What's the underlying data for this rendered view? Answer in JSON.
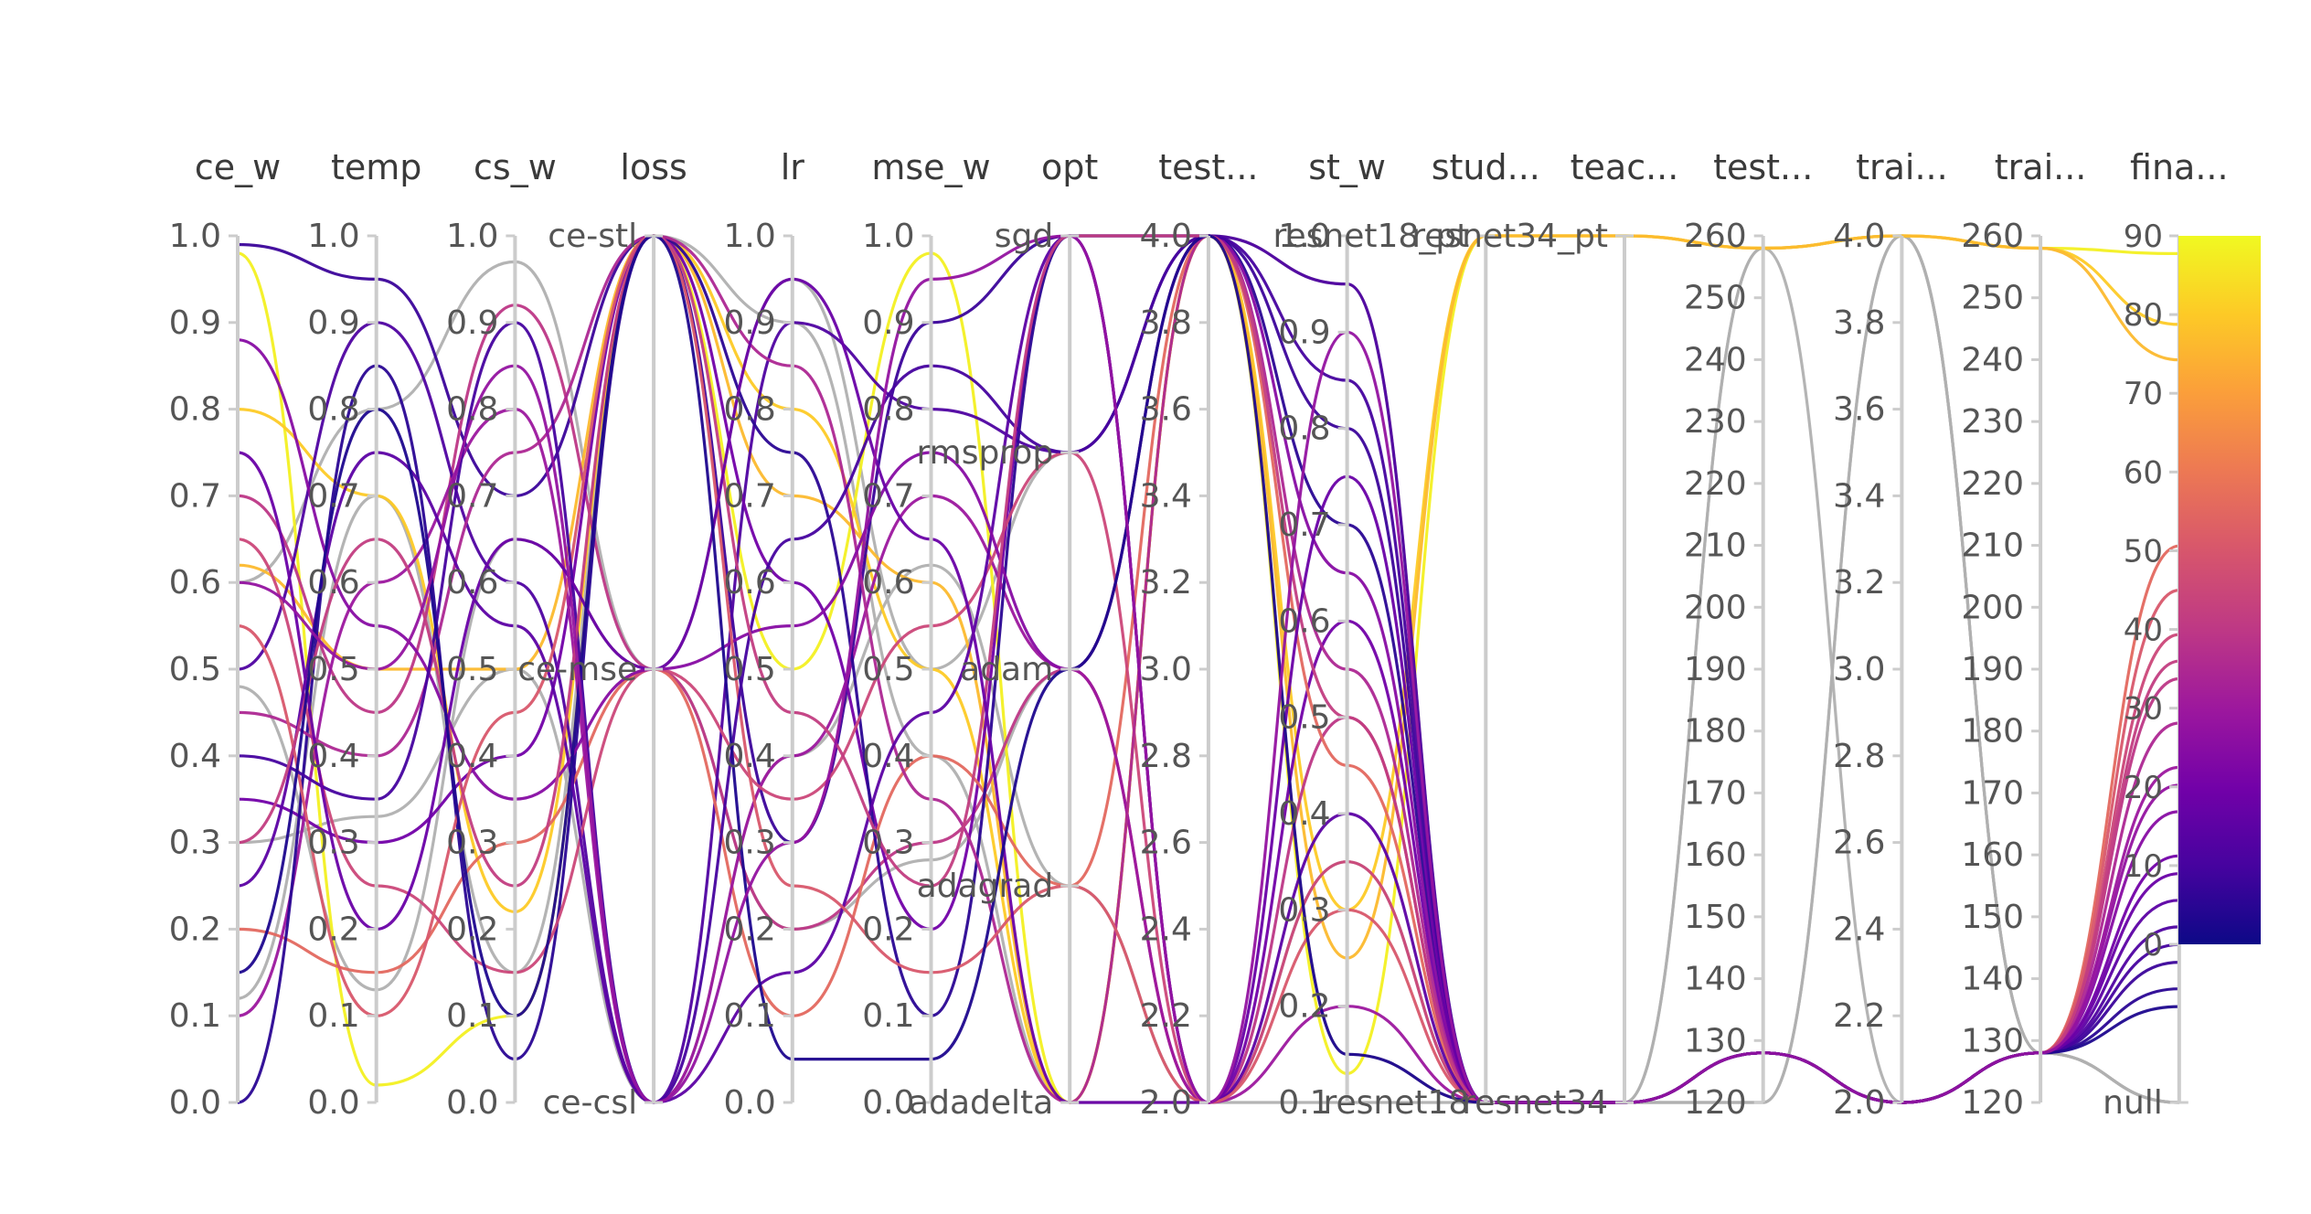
{
  "chart_data": {
    "type": "parallel_coordinates",
    "axes": [
      {
        "key": "ce_w",
        "label": "ce_w",
        "kind": "numeric",
        "range": [
          0,
          1
        ],
        "ticks": [
          "0.0",
          "0.1",
          "0.2",
          "0.3",
          "0.4",
          "0.5",
          "0.6",
          "0.7",
          "0.8",
          "0.9",
          "1.0"
        ],
        "tick_values": [
          0,
          0.1,
          0.2,
          0.3,
          0.4,
          0.5,
          0.6,
          0.7,
          0.8,
          0.9,
          1.0
        ]
      },
      {
        "key": "temp",
        "label": "temp",
        "kind": "numeric",
        "range": [
          0,
          1
        ],
        "ticks": [
          "0.0",
          "0.1",
          "0.2",
          "0.3",
          "0.4",
          "0.5",
          "0.6",
          "0.7",
          "0.8",
          "0.9",
          "1.0"
        ],
        "tick_values": [
          0,
          0.1,
          0.2,
          0.3,
          0.4,
          0.5,
          0.6,
          0.7,
          0.8,
          0.9,
          1.0
        ]
      },
      {
        "key": "cs_w",
        "label": "cs_w",
        "kind": "numeric",
        "range": [
          0,
          1
        ],
        "ticks": [
          "0.0",
          "0.1",
          "0.2",
          "0.3",
          "0.4",
          "0.5",
          "0.6",
          "0.7",
          "0.8",
          "0.9",
          "1.0"
        ],
        "tick_values": [
          0,
          0.1,
          0.2,
          0.3,
          0.4,
          0.5,
          0.6,
          0.7,
          0.8,
          0.9,
          1.0
        ]
      },
      {
        "key": "loss",
        "label": "loss",
        "kind": "categorical",
        "categories": [
          "ce-csl",
          "ce-mse",
          "ce-stl"
        ]
      },
      {
        "key": "lr",
        "label": "lr",
        "kind": "numeric",
        "range": [
          0,
          1
        ],
        "ticks": [
          "0.0",
          "0.1",
          "0.2",
          "0.3",
          "0.4",
          "0.5",
          "0.6",
          "0.7",
          "0.8",
          "0.9",
          "1.0"
        ],
        "tick_values": [
          0,
          0.1,
          0.2,
          0.3,
          0.4,
          0.5,
          0.6,
          0.7,
          0.8,
          0.9,
          1.0
        ]
      },
      {
        "key": "mse_w",
        "label": "mse_w",
        "kind": "numeric",
        "range": [
          0,
          1
        ],
        "ticks": [
          "0.0",
          "0.1",
          "0.2",
          "0.3",
          "0.4",
          "0.5",
          "0.6",
          "0.7",
          "0.8",
          "0.9",
          "1.0"
        ],
        "tick_values": [
          0,
          0.1,
          0.2,
          0.3,
          0.4,
          0.5,
          0.6,
          0.7,
          0.8,
          0.9,
          1.0
        ]
      },
      {
        "key": "opt",
        "label": "opt",
        "kind": "categorical",
        "categories": [
          "adadelta",
          "adagrad",
          "adam",
          "rmsprop",
          "sgd"
        ]
      },
      {
        "key": "test1",
        "label": "test...",
        "kind": "numeric",
        "range": [
          2,
          4
        ],
        "ticks": [
          "2.0",
          "2.2",
          "2.4",
          "2.6",
          "2.8",
          "3.0",
          "3.2",
          "3.4",
          "3.6",
          "3.8",
          "4.0"
        ],
        "tick_values": [
          2,
          2.2,
          2.4,
          2.6,
          2.8,
          3.0,
          3.2,
          3.4,
          3.6,
          3.8,
          4.0
        ]
      },
      {
        "key": "st_w",
        "label": "st_w",
        "kind": "numeric",
        "range": [
          0.1,
          1.0
        ],
        "ticks": [
          "0.1",
          "0.2",
          "0.3",
          "0.4",
          "0.5",
          "0.6",
          "0.7",
          "0.8",
          "0.9",
          "1.0"
        ],
        "tick_values": [
          0.1,
          0.2,
          0.3,
          0.4,
          0.5,
          0.6,
          0.7,
          0.8,
          0.9,
          1.0
        ]
      },
      {
        "key": "stud",
        "label": "stud...",
        "kind": "categorical",
        "categories": [
          "resnet18",
          "resnet18_pt"
        ]
      },
      {
        "key": "teac",
        "label": "teac...",
        "kind": "categorical",
        "categories": [
          "resnet34",
          "resnet34_pt"
        ]
      },
      {
        "key": "test2",
        "label": "test...",
        "kind": "numeric",
        "range": [
          120,
          260
        ],
        "ticks": [
          "120",
          "130",
          "140",
          "150",
          "160",
          "170",
          "180",
          "190",
          "200",
          "210",
          "220",
          "230",
          "240",
          "250",
          "260"
        ],
        "tick_values": [
          120,
          130,
          140,
          150,
          160,
          170,
          180,
          190,
          200,
          210,
          220,
          230,
          240,
          250,
          260
        ]
      },
      {
        "key": "trai1",
        "label": "trai...",
        "kind": "numeric",
        "range": [
          2,
          4
        ],
        "ticks": [
          "2.0",
          "2.2",
          "2.4",
          "2.6",
          "2.8",
          "3.0",
          "3.2",
          "3.4",
          "3.6",
          "3.8",
          "4.0"
        ],
        "tick_values": [
          2,
          2.2,
          2.4,
          2.6,
          2.8,
          3.0,
          3.2,
          3.4,
          3.6,
          3.8,
          4.0
        ]
      },
      {
        "key": "trai2",
        "label": "trai...",
        "kind": "numeric",
        "range": [
          120,
          260
        ],
        "ticks": [
          "120",
          "130",
          "140",
          "150",
          "160",
          "170",
          "180",
          "190",
          "200",
          "210",
          "220",
          "230",
          "240",
          "250",
          "260"
        ],
        "tick_values": [
          120,
          130,
          140,
          150,
          160,
          170,
          180,
          190,
          200,
          210,
          220,
          230,
          240,
          250,
          260
        ]
      },
      {
        "key": "fina",
        "label": "fina...",
        "kind": "numeric_with_null",
        "range": [
          0,
          90
        ],
        "null_label": "null"
      }
    ],
    "colorbar": {
      "range": [
        0,
        90
      ],
      "ticks": [
        "0",
        "10",
        "20",
        "30",
        "40",
        "50",
        "60",
        "70",
        "80",
        "90"
      ],
      "tick_values": [
        0,
        10,
        20,
        30,
        40,
        50,
        60,
        70,
        80,
        90
      ],
      "colorscale": [
        "#0d0887",
        "#46039f",
        "#7201a8",
        "#9c179e",
        "#bd3786",
        "#d8576b",
        "#ed7953",
        "#fb9f3a",
        "#fdca26",
        "#f0f921"
      ],
      "null_color": "#b0b0b0"
    },
    "series": [
      {
        "ce_w": 0.98,
        "temp": 0.02,
        "cs_w": 0.1,
        "loss": "ce-stl",
        "lr": 0.5,
        "mse_w": 0.98,
        "opt": "adadelta",
        "test1": 4.0,
        "st_w": 0.13,
        "stud": "resnet18_pt",
        "teac": "resnet34_pt",
        "test2": 258,
        "trai1": 4.0,
        "trai2": 258,
        "fina": 88
      },
      {
        "ce_w": 0.8,
        "temp": 0.7,
        "cs_w": 0.22,
        "loss": "ce-stl",
        "lr": 0.8,
        "mse_w": 0.5,
        "opt": "adadelta",
        "test1": 4.0,
        "st_w": 0.3,
        "stud": "resnet18_pt",
        "teac": "resnet34_pt",
        "test2": 258,
        "trai1": 4.0,
        "trai2": 258,
        "fina": 80
      },
      {
        "ce_w": 0.62,
        "temp": 0.5,
        "cs_w": 0.5,
        "loss": "ce-stl",
        "lr": 0.7,
        "mse_w": 0.6,
        "opt": "adadelta",
        "test1": 4.0,
        "st_w": 0.25,
        "stud": "resnet18_pt",
        "teac": "resnet34_pt",
        "test2": 258,
        "trai1": 4.0,
        "trai2": 258,
        "fina": 76
      },
      {
        "ce_w": 0.99,
        "temp": 0.95,
        "cs_w": 0.7,
        "loss": "ce-stl",
        "lr": 0.3,
        "mse_w": 0.9,
        "opt": "sgd",
        "test1": 4.0,
        "st_w": 0.8,
        "stud": "resnet18",
        "teac": "resnet34",
        "test2": 128,
        "trai1": 2.0,
        "trai2": 128,
        "fina": 8
      },
      {
        "ce_w": 0.7,
        "temp": 0.45,
        "cs_w": 0.92,
        "loss": "ce-mse",
        "lr": 0.2,
        "mse_w": 0.3,
        "opt": "adam",
        "test1": 2.0,
        "st_w": 0.5,
        "stud": "resnet18",
        "teac": "resnet34",
        "test2": 128,
        "trai1": 2.0,
        "trai2": 128,
        "fina": 40
      },
      {
        "ce_w": 0.5,
        "temp": 0.9,
        "cs_w": 0.6,
        "loss": "ce-csl",
        "lr": 0.9,
        "mse_w": 0.8,
        "opt": "rmsprop",
        "test1": 4.0,
        "st_w": 0.95,
        "stud": "resnet18",
        "teac": "resnet34",
        "test2": 128,
        "trai1": 2.0,
        "trai2": 128,
        "fina": 12
      },
      {
        "ce_w": 0.35,
        "temp": 0.3,
        "cs_w": 0.4,
        "loss": "ce-stl",
        "lr": 0.6,
        "mse_w": 0.2,
        "opt": "sgd",
        "test1": 2.0,
        "st_w": 0.6,
        "stud": "resnet18",
        "teac": "resnet34",
        "test2": 128,
        "trai1": 2.0,
        "trai2": 128,
        "fina": 20
      },
      {
        "ce_w": 0.2,
        "temp": 0.15,
        "cs_w": 0.3,
        "loss": "ce-mse",
        "lr": 0.1,
        "mse_w": 0.4,
        "opt": "adagrad",
        "test1": 4.0,
        "st_w": 0.45,
        "stud": "resnet18",
        "teac": "resnet34",
        "test2": 128,
        "trai1": 2.0,
        "trai2": 128,
        "fina": 55
      },
      {
        "ce_w": 0.1,
        "temp": 0.6,
        "cs_w": 0.8,
        "loss": "ce-csl",
        "lr": 0.4,
        "mse_w": 0.7,
        "opt": "adam",
        "test1": 2.0,
        "st_w": 0.2,
        "stud": "resnet18",
        "teac": "resnet34",
        "test2": 128,
        "trai1": 2.0,
        "trai2": 128,
        "fina": 30
      },
      {
        "ce_w": 0.0,
        "temp": 0.85,
        "cs_w": 0.05,
        "loss": "ce-stl",
        "lr": 0.75,
        "mse_w": 0.1,
        "opt": "sgd",
        "test1": 4.0,
        "st_w": 0.7,
        "stud": "resnet18",
        "teac": "resnet34",
        "test2": 128,
        "trai1": 2.0,
        "trai2": 128,
        "fina": 5
      },
      {
        "ce_w": 0.65,
        "temp": 0.25,
        "cs_w": 0.15,
        "loss": "ce-mse",
        "lr": 0.35,
        "mse_w": 0.55,
        "opt": "rmsprop",
        "test1": 2.0,
        "st_w": 0.35,
        "stud": "resnet18",
        "teac": "resnet34",
        "test2": 128,
        "trai1": 2.0,
        "trai2": 128,
        "fina": 45
      },
      {
        "ce_w": 0.45,
        "temp": 0.4,
        "cs_w": 0.75,
        "loss": "ce-stl",
        "lr": 0.85,
        "mse_w": 0.35,
        "opt": "adadelta",
        "test1": 4.0,
        "st_w": 0.55,
        "stud": "resnet18",
        "teac": "resnet34",
        "test2": 128,
        "trai1": 2.0,
        "trai2": 128,
        "fina": 35
      },
      {
        "ce_w": 0.25,
        "temp": 0.75,
        "cs_w": 0.55,
        "loss": "ce-csl",
        "lr": 0.15,
        "mse_w": 0.45,
        "opt": "sgd",
        "test1": 2.0,
        "st_w": 0.4,
        "stud": "resnet18",
        "teac": "resnet34",
        "test2": 128,
        "trai1": 2.0,
        "trai2": 128,
        "fina": 15
      },
      {
        "ce_w": 0.88,
        "temp": 0.55,
        "cs_w": 0.35,
        "loss": "ce-mse",
        "lr": 0.55,
        "mse_w": 0.75,
        "opt": "adam",
        "test1": 4.0,
        "st_w": 0.65,
        "stud": "resnet18",
        "teac": "resnet34",
        "test2": 128,
        "trai1": 2.0,
        "trai2": 128,
        "fina": 25
      },
      {
        "ce_w": 0.55,
        "temp": 0.1,
        "cs_w": 0.45,
        "loss": "ce-stl",
        "lr": 0.25,
        "mse_w": 0.15,
        "opt": "adagrad",
        "test1": 2.0,
        "st_w": 0.3,
        "stud": "resnet18",
        "teac": "resnet34",
        "test2": 128,
        "trai1": 2.0,
        "trai2": 128,
        "fina": 50
      },
      {
        "ce_w": 0.4,
        "temp": 0.35,
        "cs_w": 0.9,
        "loss": "ce-csl",
        "lr": 0.65,
        "mse_w": 0.85,
        "opt": "rmsprop",
        "test1": 4.0,
        "st_w": 0.85,
        "stud": "resnet18",
        "teac": "resnet34",
        "test2": 128,
        "trai1": 2.0,
        "trai2": 128,
        "fina": 10
      },
      {
        "ce_w": 0.3,
        "temp": 0.65,
        "cs_w": 0.25,
        "loss": "ce-stl",
        "lr": 0.45,
        "mse_w": 0.25,
        "opt": "sgd",
        "test1": 4.0,
        "st_w": 0.5,
        "stud": "resnet18",
        "teac": "resnet34",
        "test2": 128,
        "trai1": 2.0,
        "trai2": 128,
        "fina": 42
      },
      {
        "ce_w": 0.75,
        "temp": 0.2,
        "cs_w": 0.65,
        "loss": "ce-mse",
        "lr": 0.95,
        "mse_w": 0.65,
        "opt": "adadelta",
        "test1": 2.0,
        "st_w": 0.75,
        "stud": "resnet18",
        "teac": "resnet34",
        "test2": 128,
        "trai1": 2.0,
        "trai2": 128,
        "fina": 18
      },
      {
        "ce_w": 0.15,
        "temp": 0.8,
        "cs_w": 0.1,
        "loss": "ce-stl",
        "lr": 0.05,
        "mse_w": 0.05,
        "opt": "adam",
        "test1": 4.0,
        "st_w": 0.15,
        "stud": "resnet18",
        "teac": "resnet34",
        "test2": 128,
        "trai1": 2.0,
        "trai2": 128,
        "fina": 3
      },
      {
        "ce_w": 0.6,
        "temp": 0.5,
        "cs_w": 0.85,
        "loss": "ce-csl",
        "lr": 0.3,
        "mse_w": 0.95,
        "opt": "sgd",
        "test1": 2.0,
        "st_w": 0.9,
        "stud": "resnet18",
        "teac": "resnet34",
        "test2": 128,
        "trai1": 2.0,
        "trai2": 128,
        "fina": 28
      },
      {
        "ce_w": 0.6,
        "temp": 0.8,
        "cs_w": 0.97,
        "loss": "ce-mse",
        "lr": 0.95,
        "mse_w": 0.5,
        "opt": "rmsprop",
        "test1": 4.0,
        "st_w": 0.15,
        "stud": "resnet18",
        "teac": "resnet34",
        "test2": 258,
        "trai1": 4.0,
        "trai2": 128,
        "fina": null
      },
      {
        "ce_w": 0.3,
        "temp": 0.33,
        "cs_w": 0.5,
        "loss": "ce-csl",
        "lr": 0.4,
        "mse_w": 0.62,
        "opt": "adagrad",
        "test1": 2.0,
        "st_w": 0.35,
        "stud": "resnet18",
        "teac": "resnet34",
        "test2": 120,
        "trai1": 4.0,
        "trai2": 128,
        "fina": null
      },
      {
        "ce_w": 0.48,
        "temp": 0.13,
        "cs_w": 0.65,
        "loss": "ce-mse",
        "lr": 0.2,
        "mse_w": 0.28,
        "opt": "adam",
        "test1": 4.0,
        "st_w": 0.95,
        "stud": "resnet18",
        "teac": "resnet34",
        "test2": 258,
        "trai1": 2.0,
        "trai2": 128,
        "fina": null
      },
      {
        "ce_w": 0.12,
        "temp": 0.7,
        "cs_w": 0.15,
        "loss": "ce-stl",
        "lr": 0.9,
        "mse_w": 0.4,
        "opt": "adadelta",
        "test1": 2.0,
        "st_w": 0.1,
        "stud": "resnet18",
        "teac": "resnet34",
        "test2": 120,
        "trai1": 4.0,
        "trai2": 128,
        "fina": null
      }
    ]
  }
}
